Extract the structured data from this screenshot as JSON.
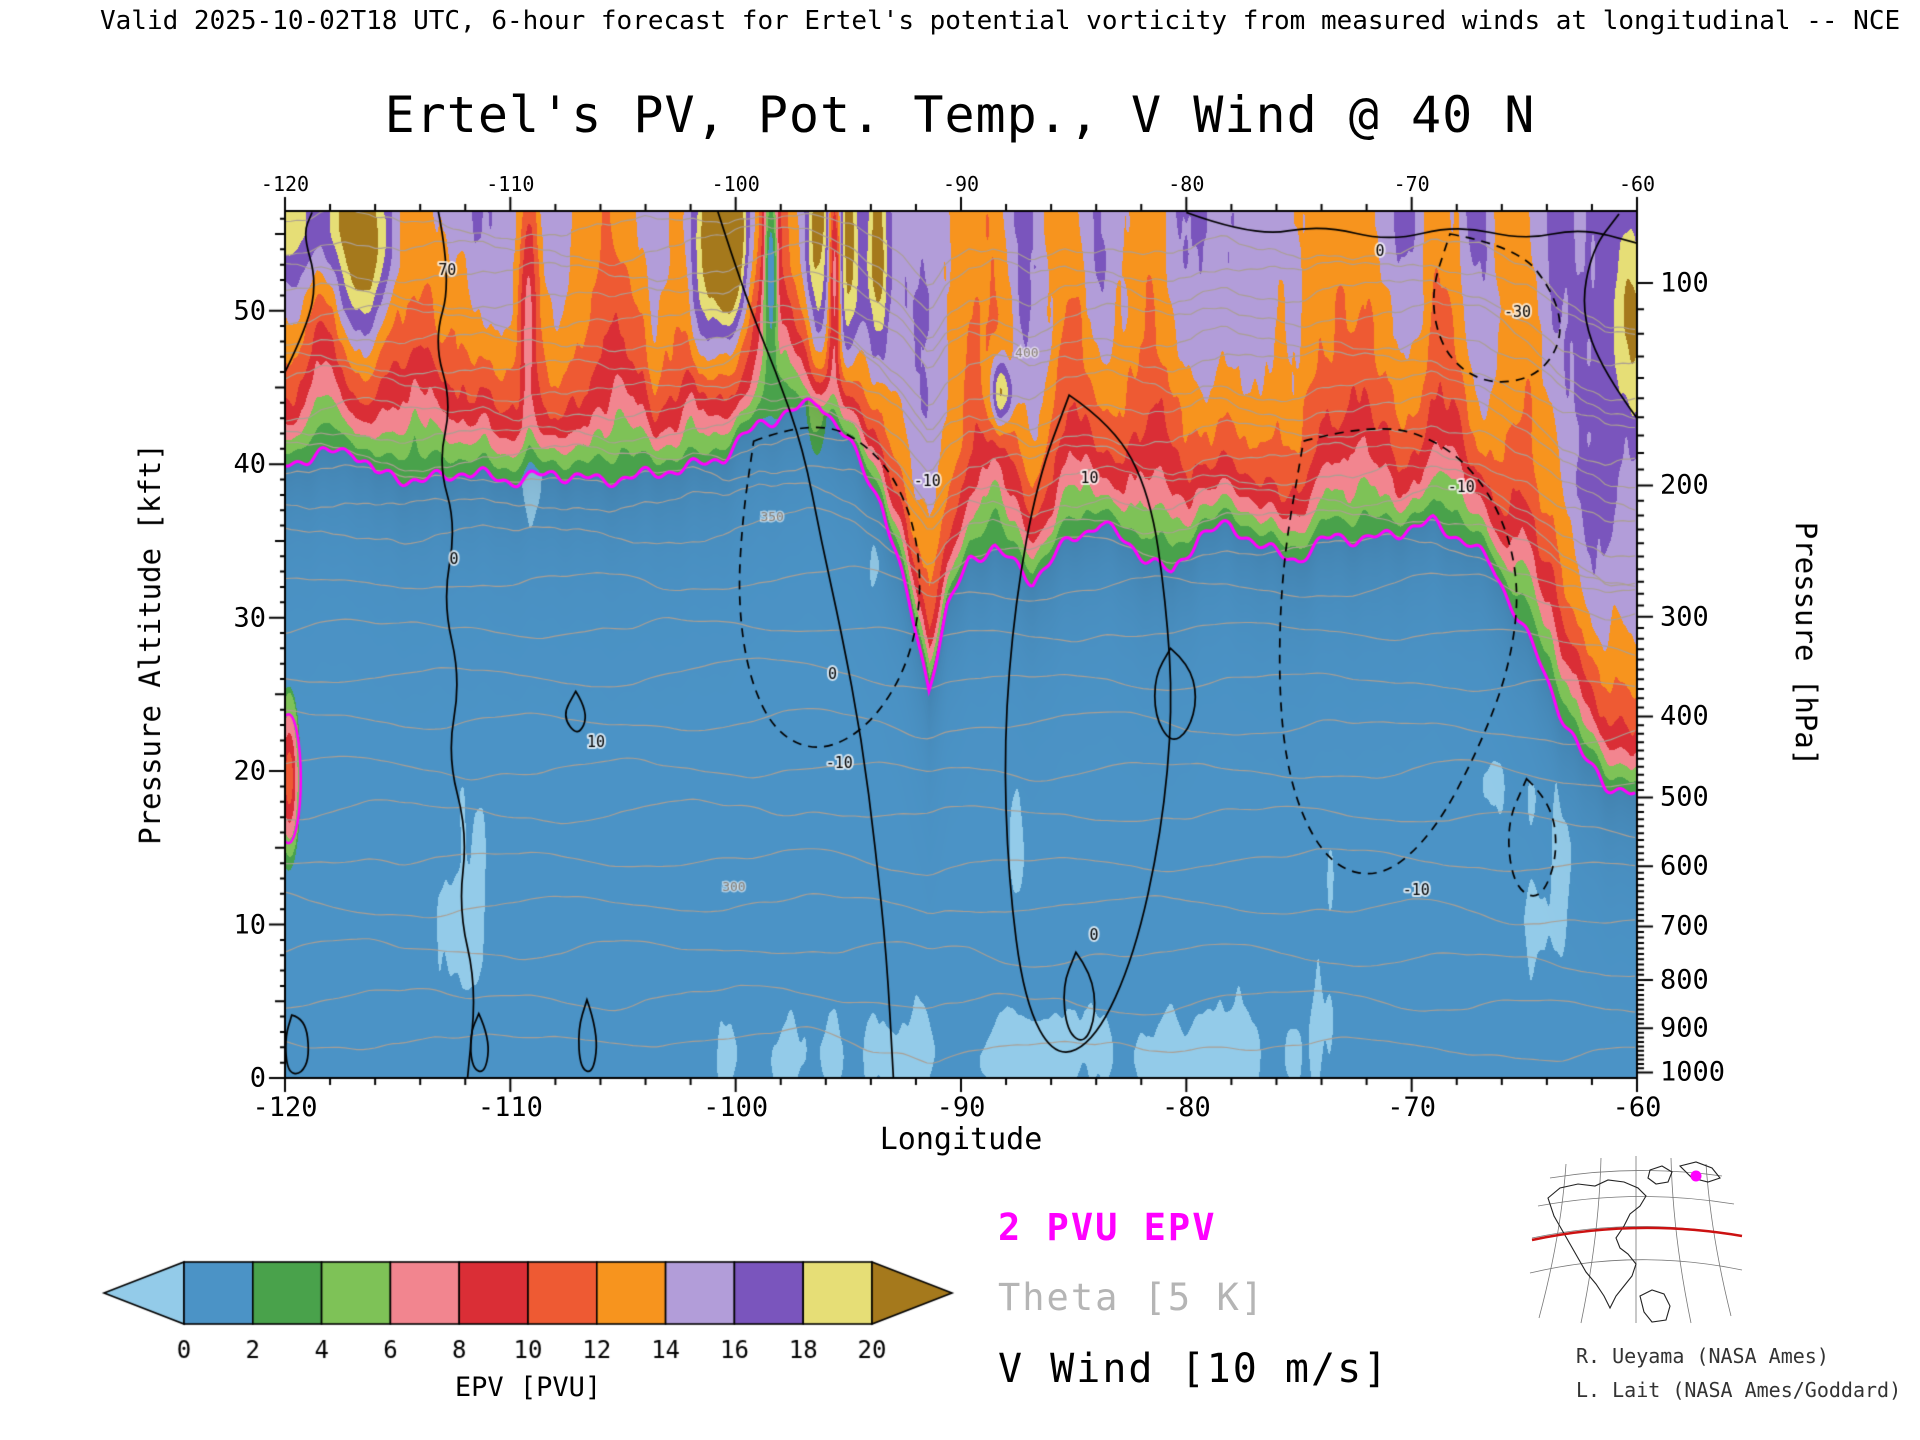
{
  "header": {
    "valid_line": "Valid 2025-10-02T18 UTC, 6-hour forecast for Ertel's potential vorticity from measured winds at longitudinal -- NCE"
  },
  "title": "Ertel's PV, Pot. Temp., V Wind @ 40 N",
  "axes": {
    "x": {
      "label": "Longitude",
      "min": -120,
      "max": -60,
      "major_ticks": [
        -120,
        -110,
        -100,
        -90,
        -80,
        -70,
        -60
      ],
      "minor_step": 2
    },
    "y_left": {
      "label": "Pressure Altitude [kft]",
      "min": 0,
      "max": 56.5,
      "major_ticks": [
        0,
        10,
        20,
        30,
        40,
        50
      ]
    },
    "y_right": {
      "label": "Pressure [hPa]",
      "ticks": [
        100,
        200,
        300,
        400,
        500,
        600,
        700,
        800,
        900,
        1000
      ]
    }
  },
  "legend": {
    "items": [
      {
        "text": "2 PVU EPV",
        "color": "#ff00ff"
      },
      {
        "text": "Theta [5 K]",
        "color": "#b5b5b5"
      },
      {
        "text": "V Wind [10 m/s]",
        "color": "#000000"
      }
    ]
  },
  "colorbar": {
    "label": "EPV [PVU]",
    "tick_labels": [
      "0",
      "2",
      "4",
      "6",
      "8",
      "10",
      "12",
      "14",
      "16",
      "18",
      "20"
    ],
    "colors": {
      "below": "#93cbe9",
      "bands": [
        "#4b93c6",
        "#49a24b",
        "#7ec257",
        "#f2858f",
        "#da2e36",
        "#ee5a33",
        "#f7941e",
        "#b29dd9",
        "#7a55bd",
        "#e6de76"
      ],
      "above": "#a5791c"
    }
  },
  "credits": [
    "R. Ueyama (NASA Ames)",
    "L. Lait (NASA Ames/Goddard)"
  ],
  "inset_map": {
    "lat_line_color": "#cc1111",
    "point_color": "#ff00ff"
  },
  "chart_data": {
    "type": "filled_contour_cross_section",
    "title": "Ertel's PV, Pot. Temp., V Wind @ 40 N",
    "xlabel": "Longitude",
    "ylabel_left": "Pressure Altitude [kft]",
    "ylabel_right": "Pressure [hPa]",
    "x_range": [
      -120,
      -60
    ],
    "y_left_range_kft": [
      0,
      56.5
    ],
    "pressure_ticks_hPa": [
      100,
      200,
      300,
      400,
      500,
      600,
      700,
      800,
      900,
      1000
    ],
    "epv_levels_PVU": [
      0,
      2,
      4,
      6,
      8,
      10,
      12,
      14,
      16,
      18,
      20
    ],
    "tropopause_2pvu_kft": [
      [
        -120,
        40
      ],
      [
        -118.5,
        40.6
      ],
      [
        -117,
        41
      ],
      [
        -116,
        39.4
      ],
      [
        -114,
        38.9
      ],
      [
        -112,
        39.5
      ],
      [
        -110,
        38.9
      ],
      [
        -108,
        39.4
      ],
      [
        -106,
        38.9
      ],
      [
        -104,
        39.3
      ],
      [
        -102,
        39.8
      ],
      [
        -100.5,
        40.5
      ],
      [
        -99,
        42.6
      ],
      [
        -97.5,
        43.4
      ],
      [
        -96.3,
        44.2
      ],
      [
        -95,
        41.5
      ],
      [
        -93.5,
        37.5
      ],
      [
        -92.3,
        31
      ],
      [
        -91.4,
        25.5
      ],
      [
        -90.6,
        30.5
      ],
      [
        -89.6,
        33.8
      ],
      [
        -88.5,
        34.6
      ],
      [
        -86.8,
        32.4
      ],
      [
        -85.2,
        35
      ],
      [
        -83.8,
        36.2
      ],
      [
        -82.2,
        34.4
      ],
      [
        -80.6,
        32.8
      ],
      [
        -79.4,
        35.4
      ],
      [
        -78,
        36
      ],
      [
        -76.4,
        34.4
      ],
      [
        -75,
        33.8
      ],
      [
        -73.4,
        35.4
      ],
      [
        -72,
        35
      ],
      [
        -70.6,
        35.6
      ],
      [
        -69,
        36.2
      ],
      [
        -67.4,
        34.8
      ],
      [
        -66.4,
        33.4
      ],
      [
        -65.4,
        30.5
      ],
      [
        -64.4,
        27.5
      ],
      [
        -63.4,
        24
      ],
      [
        -62.4,
        21
      ],
      [
        -61.4,
        19.2
      ],
      [
        -60,
        18.4
      ]
    ],
    "epv_streaks": [
      {
        "lon": -118.6,
        "kft": 55.5,
        "w": 1.5,
        "h": 3.2,
        "amp": 5.2
      },
      {
        "lon": -116.2,
        "kft": 54.5,
        "w": 0.8,
        "h": 4.2,
        "amp": 6.5
      },
      {
        "lon": -109.2,
        "kft": 52,
        "w": 0.35,
        "h": 7,
        "amp": -7
      },
      {
        "lon": -101.5,
        "kft": 52,
        "w": 0.5,
        "h": 6,
        "amp": 7
      },
      {
        "lon": -100.3,
        "kft": 55,
        "w": 0.55,
        "h": 3.6,
        "amp": 14
      },
      {
        "lon": -98.45,
        "kft": 54,
        "w": 0.22,
        "h": 5,
        "amp": -10
      },
      {
        "lon": -96.4,
        "kft": 52,
        "w": 0.45,
        "h": 7,
        "amp": 7.5
      },
      {
        "lon": -95.6,
        "kft": 54,
        "w": 0.2,
        "h": 5,
        "amp": -9
      },
      {
        "lon": -95,
        "kft": 53,
        "w": 0.35,
        "h": 6,
        "amp": 6.5
      },
      {
        "lon": -93.7,
        "kft": 54,
        "w": 0.3,
        "h": 5,
        "amp": 6
      },
      {
        "lon": -88.2,
        "kft": 44.6,
        "w": 0.35,
        "h": 1.6,
        "amp": 9
      },
      {
        "lon": -60.3,
        "kft": 50,
        "w": 0.6,
        "h": 4.5,
        "amp": 5.5
      },
      {
        "lon": -119.85,
        "kft": 19.5,
        "w": 0.3,
        "h": 3.4,
        "amp": 9.5
      }
    ],
    "light_patches": [
      {
        "lon": -84,
        "kft": 1.5,
        "w": 11,
        "h": 2.4,
        "a": 1.1
      },
      {
        "lon": -112,
        "kft": 13,
        "w": 2.6,
        "h": 9,
        "a": 0.75
      },
      {
        "lon": -64.5,
        "kft": 11,
        "w": 2.4,
        "h": 6,
        "a": 0.7
      },
      {
        "lon": -87.8,
        "kft": 14,
        "w": 3,
        "h": 5,
        "a": 0.55
      },
      {
        "lon": -96,
        "kft": 8,
        "w": 2,
        "h": 5,
        "a": 0.5
      }
    ],
    "magenta_blob": {
      "lon": -119.85,
      "kft": 19.5,
      "rlon": 0.55,
      "rkft": 4.2
    },
    "theta_contours": {
      "interval_K": 5,
      "color": "#ab9f93",
      "labels": [
        {
          "text": "300",
          "lon": -100.6,
          "kft": 12.2
        },
        {
          "text": "350",
          "lon": -98.9,
          "kft": 36.3
        },
        {
          "text": "400",
          "lon": -87.6,
          "kft": 47
        }
      ]
    },
    "v_wind_contours": {
      "interval": "10 m/s",
      "solid": [
        {
          "points": [
            [
              -113.2,
              56.5
            ],
            [
              -112.6,
              52
            ],
            [
              -113.4,
              48
            ],
            [
              -112.6,
              44
            ],
            [
              -113.2,
              40
            ],
            [
              -112.4,
              36
            ],
            [
              -113,
              31
            ],
            [
              -112.2,
              26
            ],
            [
              -112.8,
              21
            ],
            [
              -111.9,
              16
            ],
            [
              -112.3,
              11
            ],
            [
              -111.5,
              6
            ],
            [
              -111.9,
              0
            ]
          ]
        },
        {
          "points": [
            [
              -100.8,
              56.5
            ],
            [
              -99.6,
              51
            ],
            [
              -98.2,
              46
            ],
            [
              -97,
              41
            ],
            [
              -96.2,
              35
            ],
            [
              -95.3,
              29
            ],
            [
              -94.4,
              22
            ],
            [
              -93.8,
              15
            ],
            [
              -93.3,
              8
            ],
            [
              -93,
              0
            ]
          ]
        },
        {
          "points": [
            [
              -85.2,
              44.5
            ],
            [
              -83.2,
              42.5
            ],
            [
              -81.6,
              38
            ],
            [
              -80.9,
              31
            ],
            [
              -80.6,
              24
            ],
            [
              -81.1,
              16
            ],
            [
              -82.3,
              8
            ],
            [
              -84,
              2.5
            ],
            [
              -85.8,
              1.2
            ],
            [
              -87.2,
              5
            ],
            [
              -87.9,
              13
            ],
            [
              -88.1,
              22
            ],
            [
              -87.6,
              31
            ],
            [
              -86.6,
              39
            ],
            [
              -85.2,
              44.5
            ]
          ]
        },
        {
          "points": [
            [
              -80.7,
              28
            ],
            [
              -79.9,
              27
            ],
            [
              -79.5,
              24.8
            ],
            [
              -79.9,
              22.6
            ],
            [
              -80.7,
              21.8
            ],
            [
              -81.4,
              23.6
            ],
            [
              -81.4,
              26.2
            ],
            [
              -80.7,
              28
            ]
          ]
        },
        {
          "points": [
            [
              -84.9,
              8.2
            ],
            [
              -84.2,
              6.8
            ],
            [
              -84,
              4.2
            ],
            [
              -84.5,
              2.2
            ],
            [
              -85.3,
              3
            ],
            [
              -85.5,
              6
            ],
            [
              -84.9,
              8.2
            ]
          ]
        },
        {
          "points": [
            [
              -107.1,
              25.2
            ],
            [
              -106.5,
              23.8
            ],
            [
              -107,
              22.2
            ],
            [
              -107.7,
              23.6
            ],
            [
              -107.1,
              25.2
            ]
          ]
        },
        {
          "points": [
            [
              -119.7,
              4.1
            ],
            [
              -119.1,
              3.9
            ],
            [
              -118.9,
              1.4
            ],
            [
              -119.3,
              0.2
            ],
            [
              -119.9,
              0.4
            ],
            [
              -120,
              2.6
            ],
            [
              -119.7,
              4.1
            ]
          ]
        },
        {
          "points": [
            [
              -111.4,
              4.2
            ],
            [
              -110.9,
              2.6
            ],
            [
              -111.1,
              0.3
            ],
            [
              -111.7,
              0.6
            ],
            [
              -111.8,
              2.8
            ],
            [
              -111.4,
              4.2
            ]
          ]
        },
        {
          "points": [
            [
              -106.6,
              5.1
            ],
            [
              -106.1,
              3
            ],
            [
              -106.3,
              0.3
            ],
            [
              -106.9,
              0.6
            ],
            [
              -107,
              3.2
            ],
            [
              -106.6,
              5.1
            ]
          ]
        },
        {
          "points": [
            [
              -80,
              56.4
            ],
            [
              -77,
              54.8
            ],
            [
              -74,
              55.6
            ],
            [
              -71,
              54.5
            ],
            [
              -68,
              55.6
            ],
            [
              -65,
              54.6
            ],
            [
              -62.5,
              55.4
            ],
            [
              -60,
              54.4
            ]
          ]
        },
        {
          "points": [
            [
              -120,
              46
            ],
            [
              -119,
              49
            ],
            [
              -118.6,
              52
            ],
            [
              -119.2,
              55
            ],
            [
              -118.8,
              56.4
            ]
          ]
        },
        {
          "points": [
            [
              -60,
              43
            ],
            [
              -61.5,
              46
            ],
            [
              -62.5,
              50
            ],
            [
              -62,
              54
            ],
            [
              -60.8,
              56.3
            ]
          ]
        }
      ],
      "dashed": [
        {
          "points": [
            [
              -99.2,
              41.5
            ],
            [
              -96.5,
              43
            ],
            [
              -93.8,
              41
            ],
            [
              -92.2,
              37
            ],
            [
              -91.7,
              32
            ],
            [
              -92.3,
              27
            ],
            [
              -94,
              23
            ],
            [
              -96.2,
              21.2
            ],
            [
              -98.2,
              22.4
            ],
            [
              -99.4,
              26
            ],
            [
              -99.9,
              31
            ],
            [
              -99.7,
              36.5
            ],
            [
              -99.2,
              41.5
            ]
          ]
        },
        {
          "points": [
            [
              -74.8,
              41.5
            ],
            [
              -71.5,
              42.8
            ],
            [
              -68.3,
              41.2
            ],
            [
              -66.2,
              37.5
            ],
            [
              -65.2,
              32.5
            ],
            [
              -65.6,
              27
            ],
            [
              -67,
              21.5
            ],
            [
              -69,
              16
            ],
            [
              -71.3,
              13
            ],
            [
              -73.6,
              13.8
            ],
            [
              -75.2,
              18
            ],
            [
              -75.9,
              24
            ],
            [
              -75.8,
              33
            ],
            [
              -74.8,
              41.5
            ]
          ]
        },
        {
          "points": [
            [
              -68.3,
              55
            ],
            [
              -65.3,
              54.2
            ],
            [
              -63.6,
              51
            ],
            [
              -63.3,
              48
            ],
            [
              -64.5,
              45.6
            ],
            [
              -66.8,
              45.2
            ],
            [
              -68.6,
              47.2
            ],
            [
              -69.2,
              51
            ],
            [
              -68.3,
              55
            ]
          ]
        },
        {
          "points": [
            [
              -64.9,
              19.5
            ],
            [
              -63.8,
              18
            ],
            [
              -63.5,
              14.5
            ],
            [
              -64.3,
              11.5
            ],
            [
              -65.5,
              12.5
            ],
            [
              -65.8,
              16.5
            ],
            [
              -64.9,
              19.5
            ]
          ]
        }
      ],
      "labels": [
        {
          "text": "0",
          "lon": -112.7,
          "kft": 33.5
        },
        {
          "text": "70",
          "lon": -113.2,
          "kft": 52.3
        },
        {
          "text": "0",
          "lon": -95.9,
          "kft": 26
        },
        {
          "text": "10",
          "lon": -84.7,
          "kft": 38.8
        },
        {
          "text": "0",
          "lon": -84.3,
          "kft": 9
        },
        {
          "text": "10",
          "lon": -106.6,
          "kft": 21.6
        },
        {
          "text": "0",
          "lon": -71.6,
          "kft": 53.6
        },
        {
          "text": "-10",
          "lon": -96,
          "kft": 20.2
        },
        {
          "text": "-10",
          "lon": -92.1,
          "kft": 38.6
        },
        {
          "text": "-10",
          "lon": -70.4,
          "kft": 11.9
        },
        {
          "text": "-10",
          "lon": -68.4,
          "kft": 38.2
        },
        {
          "text": "-30",
          "lon": -65.9,
          "kft": 49.6
        }
      ]
    }
  }
}
